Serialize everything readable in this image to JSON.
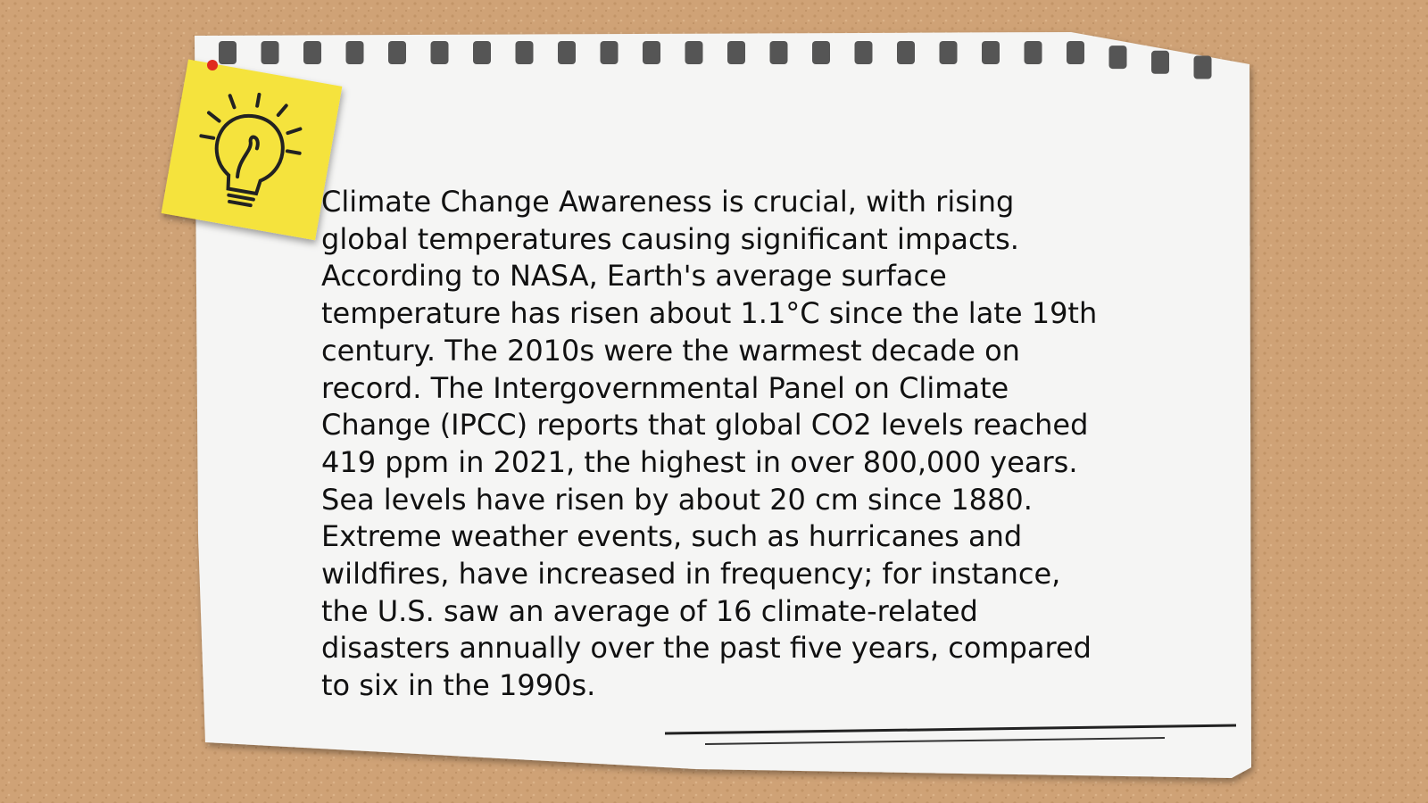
{
  "note": {
    "lines": [
      "Climate Change Awareness is crucial, with rising",
      "global temperatures causing significant impacts.",
      "According to NASA, Earth's average surface",
      "temperature has risen about 1.1°C since the late 19th",
      "century. The 2010s were the warmest decade on",
      "record. The Intergovernmental Panel on Climate",
      "Change (IPCC) reports that global CO2 levels reached",
      "419 ppm in 2021, the highest in over 800,000 years.",
      "Sea levels have risen by about 20 cm since 1880.",
      "Extreme weather events, such as hurricanes and",
      "wildfires, have increased in frequency; for instance,",
      "the U.S. saw an average of 16 climate-related",
      "disasters annually over the past five years, compared",
      "to six in the 1990s."
    ]
  }
}
